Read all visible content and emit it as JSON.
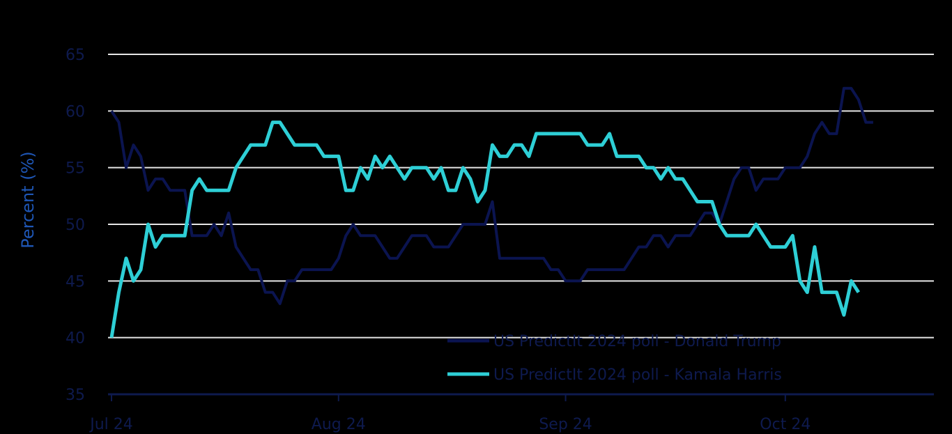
{
  "chart_data": {
    "type": "line",
    "title": "",
    "xlabel": "",
    "ylabel": "Percent (%)",
    "ylim": [
      35,
      65
    ],
    "yticks": [
      35,
      40,
      45,
      50,
      55,
      60,
      65
    ],
    "xlim": [
      0,
      112
    ],
    "xticks": [
      {
        "label": "Jul 24",
        "x": 0
      },
      {
        "label": "Aug 24",
        "x": 31
      },
      {
        "label": "Sep 24",
        "x": 62
      },
      {
        "label": "Oct 24",
        "x": 92
      }
    ],
    "grid": true,
    "legend_position": "bottom-right",
    "series": [
      {
        "name": "US PredictIt 2024 poll - Donald Trump",
        "color": "#0b1450",
        "points": [
          [
            0,
            60
          ],
          [
            1,
            59
          ],
          [
            2,
            55
          ],
          [
            3,
            57
          ],
          [
            4,
            56
          ],
          [
            5,
            53
          ],
          [
            6,
            54
          ],
          [
            7,
            54
          ],
          [
            8,
            53
          ],
          [
            9,
            53
          ],
          [
            10,
            53
          ],
          [
            11,
            49
          ],
          [
            12,
            49
          ],
          [
            13,
            49
          ],
          [
            14,
            50
          ],
          [
            15,
            49
          ],
          [
            16,
            51
          ],
          [
            17,
            48
          ],
          [
            18,
            47
          ],
          [
            19,
            46
          ],
          [
            20,
            46
          ],
          [
            21,
            44
          ],
          [
            22,
            44
          ],
          [
            23,
            43
          ],
          [
            24,
            45
          ],
          [
            25,
            45
          ],
          [
            26,
            46
          ],
          [
            27,
            46
          ],
          [
            28,
            46
          ],
          [
            29,
            46
          ],
          [
            30,
            46
          ],
          [
            31,
            47
          ],
          [
            32,
            49
          ],
          [
            33,
            50
          ],
          [
            34,
            49
          ],
          [
            35,
            49
          ],
          [
            36,
            49
          ],
          [
            37,
            48
          ],
          [
            38,
            47
          ],
          [
            39,
            47
          ],
          [
            40,
            48
          ],
          [
            41,
            49
          ],
          [
            42,
            49
          ],
          [
            43,
            49
          ],
          [
            44,
            48
          ],
          [
            45,
            48
          ],
          [
            46,
            48
          ],
          [
            47,
            49
          ],
          [
            48,
            50
          ],
          [
            49,
            50
          ],
          [
            50,
            50
          ],
          [
            51,
            50
          ],
          [
            52,
            52
          ],
          [
            53,
            47
          ],
          [
            54,
            47
          ],
          [
            55,
            47
          ],
          [
            56,
            47
          ],
          [
            57,
            47
          ],
          [
            58,
            47
          ],
          [
            59,
            47
          ],
          [
            60,
            46
          ],
          [
            61,
            46
          ],
          [
            62,
            45
          ],
          [
            63,
            45
          ],
          [
            64,
            45
          ],
          [
            65,
            46
          ],
          [
            66,
            46
          ],
          [
            67,
            46
          ],
          [
            68,
            46
          ],
          [
            69,
            46
          ],
          [
            70,
            46
          ],
          [
            71,
            47
          ],
          [
            72,
            48
          ],
          [
            73,
            48
          ],
          [
            74,
            49
          ],
          [
            75,
            49
          ],
          [
            76,
            48
          ],
          [
            77,
            49
          ],
          [
            78,
            49
          ],
          [
            79,
            49
          ],
          [
            80,
            50
          ],
          [
            81,
            51
          ],
          [
            82,
            51
          ],
          [
            83,
            50
          ],
          [
            84,
            52
          ],
          [
            85,
            54
          ],
          [
            86,
            55
          ],
          [
            87,
            55
          ],
          [
            88,
            53
          ],
          [
            89,
            54
          ],
          [
            90,
            54
          ],
          [
            91,
            54
          ],
          [
            92,
            55
          ],
          [
            93,
            55
          ],
          [
            94,
            55
          ],
          [
            95,
            56
          ],
          [
            96,
            58
          ],
          [
            97,
            59
          ],
          [
            98,
            58
          ],
          [
            99,
            58
          ],
          [
            100,
            62
          ],
          [
            101,
            62
          ],
          [
            102,
            61
          ],
          [
            103,
            59
          ],
          [
            104,
            59
          ]
        ]
      },
      {
        "name": "US PredictIt 2024 poll - Kamala Harris",
        "color": "#2ecfd6",
        "points": [
          [
            0,
            40
          ],
          [
            1,
            44
          ],
          [
            2,
            47
          ],
          [
            3,
            45
          ],
          [
            4,
            46
          ],
          [
            5,
            50
          ],
          [
            6,
            48
          ],
          [
            7,
            49
          ],
          [
            8,
            49
          ],
          [
            9,
            49
          ],
          [
            10,
            49
          ],
          [
            11,
            53
          ],
          [
            12,
            54
          ],
          [
            13,
            53
          ],
          [
            14,
            53
          ],
          [
            15,
            53
          ],
          [
            16,
            53
          ],
          [
            17,
            55
          ],
          [
            18,
            56
          ],
          [
            19,
            57
          ],
          [
            20,
            57
          ],
          [
            21,
            57
          ],
          [
            22,
            59
          ],
          [
            23,
            59
          ],
          [
            24,
            58
          ],
          [
            25,
            57
          ],
          [
            26,
            57
          ],
          [
            27,
            57
          ],
          [
            28,
            57
          ],
          [
            29,
            56
          ],
          [
            30,
            56
          ],
          [
            31,
            56
          ],
          [
            32,
            53
          ],
          [
            33,
            53
          ],
          [
            34,
            55
          ],
          [
            35,
            54
          ],
          [
            36,
            56
          ],
          [
            37,
            55
          ],
          [
            38,
            56
          ],
          [
            39,
            55
          ],
          [
            40,
            54
          ],
          [
            41,
            55
          ],
          [
            42,
            55
          ],
          [
            43,
            55
          ],
          [
            44,
            54
          ],
          [
            45,
            55
          ],
          [
            46,
            53
          ],
          [
            47,
            53
          ],
          [
            48,
            55
          ],
          [
            49,
            54
          ],
          [
            50,
            52
          ],
          [
            51,
            53
          ],
          [
            52,
            57
          ],
          [
            53,
            56
          ],
          [
            54,
            56
          ],
          [
            55,
            57
          ],
          [
            56,
            57
          ],
          [
            57,
            56
          ],
          [
            58,
            58
          ],
          [
            59,
            58
          ],
          [
            60,
            58
          ],
          [
            61,
            58
          ],
          [
            62,
            58
          ],
          [
            63,
            58
          ],
          [
            64,
            58
          ],
          [
            65,
            57
          ],
          [
            66,
            57
          ],
          [
            67,
            57
          ],
          [
            68,
            58
          ],
          [
            69,
            56
          ],
          [
            70,
            56
          ],
          [
            71,
            56
          ],
          [
            72,
            56
          ],
          [
            73,
            55
          ],
          [
            74,
            55
          ],
          [
            75,
            54
          ],
          [
            76,
            55
          ],
          [
            77,
            54
          ],
          [
            78,
            54
          ],
          [
            79,
            53
          ],
          [
            80,
            52
          ],
          [
            81,
            52
          ],
          [
            82,
            52
          ],
          [
            83,
            50
          ],
          [
            84,
            49
          ],
          [
            85,
            49
          ],
          [
            86,
            49
          ],
          [
            87,
            49
          ],
          [
            88,
            50
          ],
          [
            89,
            49
          ],
          [
            90,
            48
          ],
          [
            91,
            48
          ],
          [
            92,
            48
          ],
          [
            93,
            49
          ],
          [
            94,
            45
          ],
          [
            95,
            44
          ],
          [
            96,
            48
          ],
          [
            97,
            44
          ],
          [
            98,
            44
          ],
          [
            99,
            44
          ],
          [
            100,
            42
          ],
          [
            101,
            45
          ],
          [
            102,
            44
          ]
        ]
      }
    ]
  }
}
